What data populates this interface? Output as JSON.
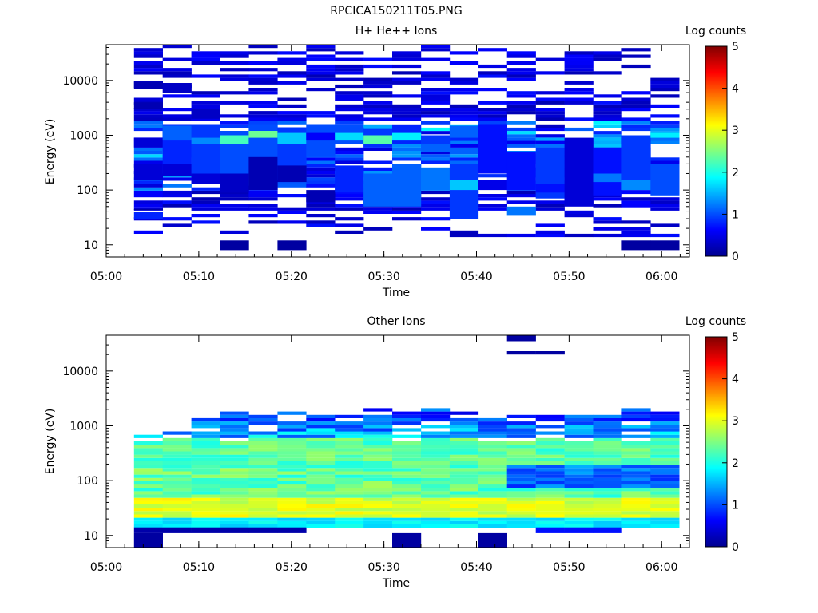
{
  "figure": {
    "title": "RPCICA150211T05.PNG"
  },
  "colors": {
    "colormap": [
      "#00008f",
      "#0000ff",
      "#0080ff",
      "#00ffff",
      "#80ff80",
      "#ffff00",
      "#ff8000",
      "#ff0000",
      "#800000"
    ]
  },
  "chart_data": [
    {
      "type": "heatmap",
      "title": "H+ He++ Ions",
      "xlabel": "Time",
      "ylabel": "Energy (eV)",
      "xlim": [
        "05:00",
        "06:03"
      ],
      "ylim": [
        6,
        45000
      ],
      "yscale": "log",
      "xticks": [
        "05:00",
        "05:10",
        "05:20",
        "05:30",
        "05:40",
        "05:50",
        "06:00"
      ],
      "yticks": [
        10,
        100,
        1000,
        10000
      ],
      "ytick_labels": [
        "10",
        "100",
        "1000",
        "10000"
      ],
      "colorbar": {
        "label": "Log counts",
        "min": 0,
        "max": 5,
        "ticks": [
          "0",
          "1",
          "2",
          "3",
          "4",
          "5"
        ]
      },
      "time_bins": [
        "05:03",
        "05:06",
        "05:09",
        "05:12",
        "05:15",
        "05:18",
        "05:21",
        "05:24",
        "05:27",
        "05:30",
        "05:33",
        "05:36",
        "05:39",
        "05:42",
        "05:45",
        "05:48",
        "05:51",
        "05:54",
        "05:57"
      ],
      "cells": [
        [
          0,
          45,
          25000,
          3.0,
          0.1
        ],
        [
          0,
          900,
          600,
          1.4,
          0.4
        ],
        [
          0,
          300,
          150,
          1.4,
          0.4
        ],
        [
          0,
          40,
          30,
          1.3,
          0.8
        ],
        [
          0,
          9500,
          7000,
          1.3,
          0.2
        ],
        [
          0,
          4000,
          3000,
          1.3,
          0.2
        ],
        [
          1,
          1600,
          200,
          1.7,
          0.8
        ],
        [
          1,
          1500,
          800,
          2.0,
          1.1
        ],
        [
          1,
          9000,
          6000,
          1.5,
          0.3
        ],
        [
          1,
          300,
          180,
          1.5,
          0.4
        ],
        [
          2,
          1600,
          180,
          1.5,
          0.9
        ],
        [
          2,
          900,
          700,
          1.4,
          1.3
        ],
        [
          2,
          3000,
          2000,
          1.4,
          0.3
        ],
        [
          2,
          200,
          130,
          1.5,
          0.4
        ],
        [
          3,
          12,
          8,
          1.0,
          0.1
        ],
        [
          3,
          1200,
          100,
          1.6,
          1.0
        ],
        [
          3,
          1000,
          700,
          1.5,
          2.2
        ],
        [
          3,
          200,
          90,
          1.4,
          0.3
        ],
        [
          4,
          1600,
          120,
          1.6,
          1.0
        ],
        [
          4,
          1200,
          900,
          1.4,
          2.4
        ],
        [
          4,
          400,
          100,
          1.5,
          0.2
        ],
        [
          5,
          12,
          8,
          1.0,
          0.1
        ],
        [
          5,
          1400,
          150,
          1.7,
          0.9
        ],
        [
          5,
          1100,
          700,
          1.5,
          1.6
        ],
        [
          5,
          280,
          140,
          1.4,
          0.2
        ],
        [
          6,
          1600,
          400,
          1.7,
          1.0
        ],
        [
          6,
          1100,
          800,
          1.5,
          0.6
        ],
        [
          6,
          100,
          60,
          1.4,
          0.2
        ],
        [
          7,
          1400,
          700,
          1.6,
          1.0
        ],
        [
          7,
          1100,
          800,
          1.5,
          1.7
        ],
        [
          7,
          280,
          90,
          1.4,
          0.8
        ],
        [
          8,
          1300,
          700,
          1.6,
          0.9
        ],
        [
          8,
          1000,
          700,
          1.5,
          2.3
        ],
        [
          8,
          200,
          50,
          1.6,
          1.1
        ],
        [
          9,
          1400,
          700,
          1.6,
          0.8
        ],
        [
          9,
          1100,
          800,
          1.5,
          1.8
        ],
        [
          9,
          300,
          50,
          1.6,
          1.1
        ],
        [
          10,
          1000,
          600,
          1.6,
          0.9
        ],
        [
          10,
          200,
          120,
          1.9,
          0.8
        ],
        [
          10,
          250,
          100,
          2.0,
          1.2
        ],
        [
          10,
          700,
          500,
          1.5,
          1.1
        ],
        [
          11,
          1500,
          900,
          1.5,
          1.1
        ],
        [
          11,
          300,
          30,
          1.6,
          0.9
        ],
        [
          11,
          150,
          100,
          1.9,
          1.6
        ],
        [
          12,
          1600,
          200,
          1.6,
          0.7
        ],
        [
          12,
          150,
          100,
          1.9,
          0.5
        ],
        [
          13,
          500,
          100,
          1.5,
          0.7
        ],
        [
          13,
          50,
          35,
          1.3,
          1.2
        ],
        [
          14,
          600,
          70,
          1.6,
          0.9
        ],
        [
          14,
          130,
          90,
          1.7,
          0.7
        ],
        [
          15,
          900,
          50,
          1.6,
          0.4
        ],
        [
          16,
          600,
          80,
          1.6,
          0.7
        ],
        [
          16,
          200,
          140,
          1.4,
          1.2
        ],
        [
          17,
          12,
          8,
          1.0,
          0.1
        ],
        [
          17,
          1000,
          100,
          1.6,
          0.9
        ],
        [
          17,
          150,
          100,
          1.5,
          1.3
        ],
        [
          18,
          12,
          8,
          1.0,
          0.1
        ],
        [
          18,
          1100,
          900,
          1.4,
          1.8
        ],
        [
          18,
          300,
          80,
          1.6,
          1.0
        ]
      ],
      "sparse": [
        0,
        0,
        0,
        1,
        0,
        1,
        1,
        1,
        1,
        1,
        1,
        1,
        1,
        1,
        1,
        1,
        1,
        1,
        1
      ]
    },
    {
      "type": "heatmap",
      "title": "Other Ions",
      "xlabel": "Time",
      "ylabel": "Energy (eV)",
      "xlim": [
        "05:00",
        "06:03"
      ],
      "ylim": [
        6,
        45000
      ],
      "yscale": "log",
      "xticks": [
        "05:00",
        "05:10",
        "05:20",
        "05:30",
        "05:40",
        "05:50",
        "06:00"
      ],
      "yticks": [
        10,
        100,
        1000,
        10000
      ],
      "ytick_labels": [
        "10",
        "100",
        "1000",
        "10000"
      ],
      "colorbar": {
        "label": "Log counts",
        "min": 0,
        "max": 5,
        "ticks": [
          "0",
          "1",
          "2",
          "3",
          "4",
          "5"
        ]
      },
      "profiles": [
        [
          650,
          11,
          8,
          6.5
        ],
        [
          750,
          11,
          11,
          6.5
        ],
        [
          1600,
          11,
          11,
          7.5
        ],
        [
          1800,
          11,
          11,
          7.5
        ],
        [
          2000,
          11,
          11,
          7.5
        ],
        [
          1800,
          11,
          11,
          7.5
        ],
        [
          1600,
          18,
          18,
          7.5
        ],
        [
          1600,
          18,
          18,
          7.5
        ],
        [
          2000,
          11,
          18,
          7.5
        ],
        [
          2100,
          17,
          17,
          7.5
        ],
        [
          2000,
          16,
          16,
          8.5
        ],
        [
          1700,
          11,
          11,
          7.5
        ],
        [
          1600,
          17,
          17,
          7.5
        ],
        [
          1600,
          16,
          11,
          7.5
        ],
        [
          1500,
          11,
          11,
          7.5
        ],
        [
          1600,
          11,
          11,
          7.5
        ],
        [
          1500,
          11,
          11,
          7.5
        ],
        [
          2300,
          17,
          17,
          7.5
        ],
        [
          1700,
          17,
          17,
          7.5
        ]
      ],
      "extras": [
        [
          13,
          45000,
          35000,
          1.2,
          0.1
        ],
        [
          13,
          23000,
          20000,
          1.2,
          0.1
        ],
        [
          14,
          23000,
          20000,
          1.2,
          0.1
        ],
        [
          0,
          11,
          6,
          1.0,
          0.1
        ],
        [
          9,
          11,
          6,
          1.0,
          0.1
        ],
        [
          12,
          11,
          6,
          1.0,
          0.1
        ]
      ]
    }
  ]
}
